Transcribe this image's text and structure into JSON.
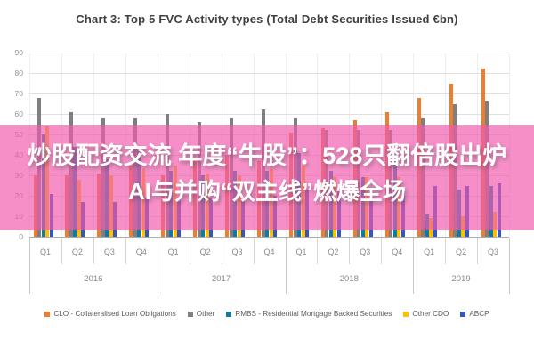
{
  "title": "Chart 3: Top 5 FVC Activity types (Total Debt Securities Issued €bn)",
  "overlay": {
    "line1": "炒股配资交流 年度“牛股”：528只翻倍股出炉",
    "line2": "AI与并购“双主线”燃爆全场",
    "band_color": "rgba(242,90,174,0.68)",
    "text_color": "#ffffff"
  },
  "chart_data": {
    "type": "bar",
    "title": "Chart 3: Top 5 FVC Activity types (Total Debt Securities Issued €bn)",
    "xlabel": "",
    "ylabel": "",
    "ylim": [
      0,
      90
    ],
    "yticks": [
      0,
      10,
      20,
      30,
      40,
      50,
      60,
      70,
      80,
      90
    ],
    "grid": true,
    "legend_position": "bottom",
    "categories": [
      "Q1",
      "Q2",
      "Q3",
      "Q4",
      "Q1",
      "Q2",
      "Q3",
      "Q4",
      "Q1",
      "Q2",
      "Q3",
      "Q4",
      "Q1",
      "Q2",
      "Q3"
    ],
    "years": [
      {
        "label": "2016",
        "quarters": 4
      },
      {
        "label": "2017",
        "quarters": 4
      },
      {
        "label": "2018",
        "quarters": 4
      },
      {
        "label": "2019",
        "quarters": 3
      }
    ],
    "series": [
      {
        "name": "CLO - Collateralised Loan Obligations",
        "color": "#ED7D31",
        "values": [
          30,
          30,
          31,
          35,
          30,
          37,
          40,
          37,
          51,
          53,
          57,
          61,
          68,
          75,
          82
        ]
      },
      {
        "name": "Other",
        "color": "#7F7F7F",
        "values": [
          68,
          61,
          58,
          58,
          60,
          56,
          58,
          62,
          58,
          52,
          52,
          52,
          58,
          65,
          66
        ]
      },
      {
        "name": "RMBS - Residential Mortgage Backed Securities",
        "color": "#17789E",
        "values": [
          50,
          44,
          38,
          42,
          32,
          30,
          32,
          32,
          41,
          32,
          29,
          39,
          11,
          23,
          25
        ]
      },
      {
        "name": "Other CDO",
        "color": "#FFC000",
        "values": [
          54,
          28,
          30,
          33,
          35,
          31,
          30,
          33,
          35,
          29,
          29,
          29,
          9,
          10,
          12
        ]
      },
      {
        "name": "ABCP",
        "color": "#3257BE",
        "values": [
          21,
          17,
          17,
          19,
          19,
          19,
          18,
          20,
          23,
          22,
          24,
          23,
          25,
          25,
          26
        ]
      }
    ]
  }
}
